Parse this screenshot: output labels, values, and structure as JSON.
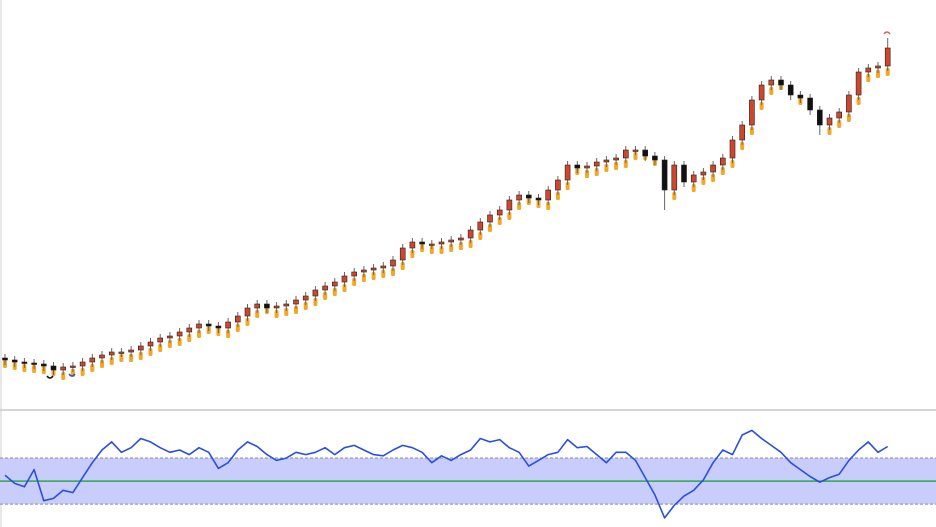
{
  "chart_data": [
    {
      "type": "candlestick",
      "up_color": "#d0462c",
      "down_color": "#111111",
      "wick_color": "#666666",
      "ylim": [
        0,
        410
      ],
      "open": [
        52,
        50,
        48,
        47,
        46,
        44,
        40,
        43,
        44,
        48,
        52,
        55,
        58,
        58,
        60,
        64,
        68,
        72,
        74,
        78,
        82,
        86,
        84,
        82,
        88,
        94,
        102,
        106,
        102,
        104,
        106,
        110,
        114,
        120,
        124,
        128,
        134,
        138,
        140,
        142,
        144,
        150,
        162,
        168,
        166,
        166,
        168,
        170,
        172,
        180,
        188,
        195,
        200,
        210,
        215,
        212,
        210,
        220,
        230,
        245,
        242,
        244,
        248,
        250,
        252,
        260,
        260,
        254,
        250,
        220,
        245,
        228,
        235,
        238,
        245,
        252,
        270,
        285,
        310,
        325,
        330,
        325,
        315,
        312,
        300,
        285,
        292,
        298,
        315,
        338,
        342,
        344
      ],
      "high": [
        56,
        54,
        52,
        51,
        50,
        48,
        47,
        48,
        52,
        56,
        59,
        62,
        62,
        64,
        68,
        72,
        76,
        78,
        82,
        86,
        90,
        90,
        88,
        92,
        98,
        106,
        110,
        110,
        108,
        110,
        114,
        118,
        124,
        128,
        132,
        138,
        142,
        144,
        146,
        148,
        154,
        166,
        172,
        172,
        170,
        172,
        174,
        176,
        184,
        192,
        199,
        204,
        214,
        219,
        219,
        216,
        224,
        234,
        249,
        249,
        248,
        252,
        254,
        256,
        264,
        264,
        264,
        258,
        254,
        249,
        249,
        239,
        242,
        249,
        256,
        274,
        289,
        314,
        329,
        334,
        334,
        329,
        319,
        316,
        304,
        296,
        302,
        319,
        342,
        346,
        348,
        372
      ],
      "low": [
        45,
        43,
        42,
        41,
        39,
        35,
        35,
        38,
        39,
        43,
        47,
        50,
        53,
        53,
        55,
        59,
        63,
        67,
        69,
        73,
        77,
        79,
        77,
        77,
        83,
        89,
        97,
        97,
        97,
        99,
        101,
        105,
        109,
        115,
        119,
        123,
        129,
        133,
        135,
        137,
        139,
        145,
        157,
        161,
        161,
        161,
        163,
        165,
        167,
        175,
        183,
        190,
        195,
        205,
        207,
        205,
        205,
        215,
        225,
        237,
        237,
        239,
        243,
        245,
        247,
        255,
        249,
        245,
        200,
        215,
        223,
        223,
        230,
        233,
        240,
        247,
        265,
        280,
        305,
        320,
        320,
        310,
        307,
        295,
        275,
        280,
        287,
        293,
        310,
        333,
        337,
        339
      ],
      "close": [
        50,
        48,
        47,
        46,
        44,
        40,
        43,
        44,
        48,
        52,
        55,
        58,
        58,
        60,
        64,
        68,
        72,
        74,
        78,
        82,
        86,
        84,
        82,
        88,
        94,
        102,
        106,
        102,
        104,
        106,
        110,
        114,
        120,
        124,
        128,
        134,
        138,
        140,
        142,
        144,
        150,
        162,
        168,
        166,
        166,
        168,
        170,
        172,
        180,
        188,
        195,
        200,
        210,
        215,
        212,
        210,
        220,
        230,
        245,
        242,
        244,
        248,
        250,
        252,
        260,
        260,
        254,
        250,
        220,
        245,
        228,
        235,
        238,
        245,
        252,
        270,
        285,
        310,
        325,
        330,
        325,
        315,
        312,
        300,
        285,
        292,
        298,
        315,
        338,
        342,
        344,
        362
      ],
      "trail": {
        "color": "#f5a623",
        "values": [
          44,
          42,
          40,
          39,
          38,
          36,
          32,
          35,
          36,
          40,
          44,
          47,
          50,
          50,
          52,
          56,
          60,
          64,
          66,
          70,
          74,
          78,
          76,
          74,
          80,
          86,
          94,
          98,
          94,
          96,
          98,
          102,
          106,
          112,
          116,
          120,
          126,
          130,
          132,
          134,
          136,
          142,
          154,
          160,
          158,
          158,
          160,
          162,
          164,
          172,
          180,
          187,
          192,
          202,
          207,
          204,
          202,
          212,
          222,
          237,
          234,
          236,
          240,
          242,
          244,
          252,
          252,
          246,
          242,
          212,
          237,
          220,
          227,
          230,
          237,
          244,
          262,
          277,
          302,
          317,
          322,
          317,
          307,
          304,
          292,
          277,
          284,
          290,
          307,
          330,
          334,
          336
        ]
      }
    },
    {
      "type": "line",
      "color": "#2a4fe0",
      "ylim": [
        11,
        110
      ],
      "band": [
        30,
        70
      ],
      "band_color": "#c9cdfb",
      "midline": 50,
      "midline_color": "#2aa84a",
      "values": [
        55,
        48,
        45,
        60,
        33,
        35,
        42,
        40,
        53,
        66,
        77,
        84,
        75,
        79,
        87,
        84,
        79,
        75,
        77,
        73,
        79,
        75,
        61,
        66,
        77,
        84,
        80,
        73,
        68,
        70,
        75,
        73,
        75,
        79,
        73,
        79,
        81,
        77,
        73,
        72,
        77,
        81,
        79,
        75,
        66,
        72,
        68,
        73,
        77,
        87,
        84,
        86,
        79,
        75,
        63,
        68,
        73,
        75,
        86,
        79,
        80,
        73,
        66,
        75,
        75,
        68,
        53,
        38,
        18,
        29,
        37,
        42,
        51,
        66,
        77,
        73,
        90,
        94,
        87,
        81,
        75,
        66,
        60,
        54,
        49,
        53,
        56,
        68,
        77,
        84,
        75,
        80
      ]
    }
  ]
}
